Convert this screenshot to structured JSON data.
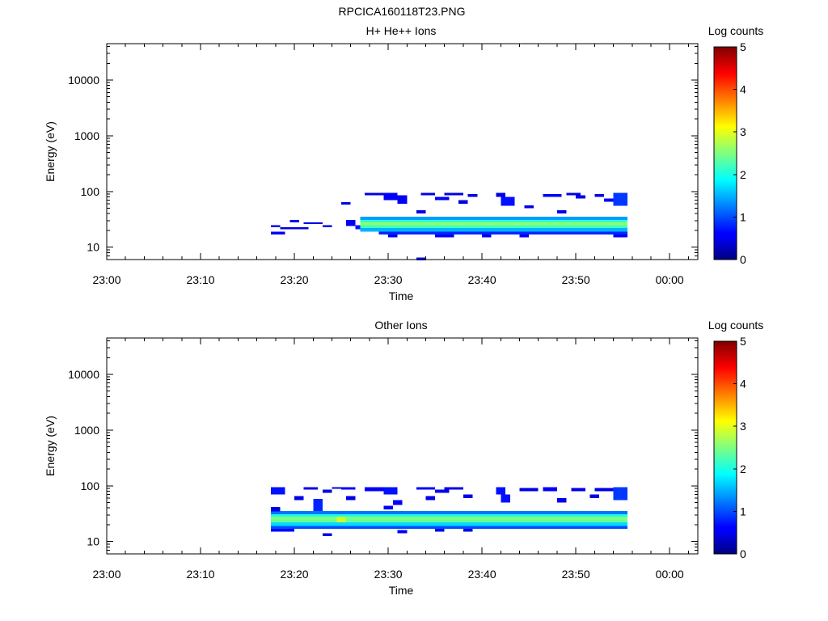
{
  "page_title": "RPCICA160118T23.PNG",
  "chart_data": [
    {
      "type": "heatmap",
      "title": "H+ He++ Ions",
      "xlabel": "Time",
      "ylabel": "Energy (eV)",
      "x_scale": "time",
      "y_scale": "log",
      "xlim": [
        "23:00",
        "00:03"
      ],
      "ylim": [
        6,
        45000
      ],
      "x_ticks": [
        {
          "label": "23:00",
          "minutes": 0
        },
        {
          "label": "23:10",
          "minutes": 10
        },
        {
          "label": "23:20",
          "minutes": 20
        },
        {
          "label": "23:30",
          "minutes": 30
        },
        {
          "label": "23:40",
          "minutes": 40
        },
        {
          "label": "23:50",
          "minutes": 50
        },
        {
          "label": "00:00",
          "minutes": 60
        }
      ],
      "y_ticks": [
        {
          "label": "10",
          "value": 10
        },
        {
          "label": "100",
          "value": 100
        },
        {
          "label": "1000",
          "value": 1000
        },
        {
          "label": "10000",
          "value": 10000
        }
      ],
      "colorbar": {
        "label": "Log counts",
        "min": 0,
        "max": 5,
        "ticks": [
          "0",
          "1",
          "2",
          "3",
          "4",
          "5"
        ]
      },
      "cells": [
        {
          "t0": "23:17.5",
          "t1": "23:18.5",
          "e_lo": 23,
          "e_hi": 25,
          "z": 0.6
        },
        {
          "t0": "23:17.5",
          "t1": "23:19",
          "e_lo": 17,
          "e_hi": 19,
          "z": 0.6
        },
        {
          "t0": "23:18.5",
          "t1": "23:21.5",
          "e_lo": 21,
          "e_hi": 23,
          "z": 0.5
        },
        {
          "t0": "23:19.5",
          "t1": "23:20.5",
          "e_lo": 28,
          "e_hi": 31,
          "z": 0.5
        },
        {
          "t0": "23:21",
          "t1": "23:23",
          "e_lo": 26,
          "e_hi": 28,
          "z": 0.5
        },
        {
          "t0": "23:23",
          "t1": "23:24",
          "e_lo": 23,
          "e_hi": 25,
          "z": 0.5
        },
        {
          "t0": "23:25",
          "t1": "23:26",
          "e_lo": 58,
          "e_hi": 64,
          "z": 0.5
        },
        {
          "t0": "23:25.5",
          "t1": "23:26.5",
          "e_lo": 24,
          "e_hi": 31,
          "z": 0.6
        },
        {
          "t0": "23:26.5",
          "t1": "23:27.5",
          "e_lo": 21,
          "e_hi": 25,
          "z": 0.7
        },
        {
          "t0": "23:27",
          "t1": "23:55.5",
          "e_lo": 31,
          "e_hi": 35,
          "z": 1.4
        },
        {
          "t0": "23:27",
          "t1": "23:55.5",
          "e_lo": 28,
          "e_hi": 31,
          "z": 2.1
        },
        {
          "t0": "23:27",
          "t1": "23:55.5",
          "e_lo": 25,
          "e_hi": 28,
          "z": 2.6
        },
        {
          "t0": "23:27",
          "t1": "23:55.5",
          "e_lo": 22,
          "e_hi": 25,
          "z": 2.2
        },
        {
          "t0": "23:27",
          "t1": "23:55.5",
          "e_lo": 19,
          "e_hi": 22,
          "z": 1.5
        },
        {
          "t0": "23:29",
          "t1": "23:55.5",
          "e_lo": 17,
          "e_hi": 19,
          "z": 0.8
        },
        {
          "t0": "23:30",
          "t1": "23:31",
          "e_lo": 15,
          "e_hi": 17,
          "z": 0.6
        },
        {
          "t0": "23:33",
          "t1": "23:34",
          "e_lo": 5.8,
          "e_hi": 6.5,
          "z": 0.5
        },
        {
          "t0": "23:35",
          "t1": "23:37",
          "e_lo": 15,
          "e_hi": 17,
          "z": 0.6
        },
        {
          "t0": "23:40",
          "t1": "23:41",
          "e_lo": 15,
          "e_hi": 17,
          "z": 0.6
        },
        {
          "t0": "23:44",
          "t1": "23:45",
          "e_lo": 15,
          "e_hi": 17,
          "z": 0.6
        },
        {
          "t0": "23:54",
          "t1": "23:55.5",
          "e_lo": 15,
          "e_hi": 17,
          "z": 0.6
        },
        {
          "t0": "23:27.5",
          "t1": "23:29.5",
          "e_lo": 85,
          "e_hi": 95,
          "z": 0.5
        },
        {
          "t0": "23:29.5",
          "t1": "23:31",
          "e_lo": 70,
          "e_hi": 95,
          "z": 0.6
        },
        {
          "t0": "23:31",
          "t1": "23:32",
          "e_lo": 60,
          "e_hi": 85,
          "z": 0.6
        },
        {
          "t0": "23:33",
          "t1": "23:34",
          "e_lo": 40,
          "e_hi": 46,
          "z": 0.5
        },
        {
          "t0": "23:33.5",
          "t1": "23:35",
          "e_lo": 85,
          "e_hi": 95,
          "z": 0.5
        },
        {
          "t0": "23:35",
          "t1": "23:36.5",
          "e_lo": 70,
          "e_hi": 80,
          "z": 0.6
        },
        {
          "t0": "23:36",
          "t1": "23:38",
          "e_lo": 85,
          "e_hi": 95,
          "z": 0.5
        },
        {
          "t0": "23:37.5",
          "t1": "23:38.5",
          "e_lo": 60,
          "e_hi": 70,
          "z": 0.5
        },
        {
          "t0": "23:38.5",
          "t1": "23:39.5",
          "e_lo": 80,
          "e_hi": 90,
          "z": 0.5
        },
        {
          "t0": "23:41.5",
          "t1": "23:42.5",
          "e_lo": 80,
          "e_hi": 95,
          "z": 0.5
        },
        {
          "t0": "23:42",
          "t1": "23:43.5",
          "e_lo": 55,
          "e_hi": 80,
          "z": 0.7
        },
        {
          "t0": "23:44.5",
          "t1": "23:45.5",
          "e_lo": 50,
          "e_hi": 56,
          "z": 0.5
        },
        {
          "t0": "23:46.5",
          "t1": "23:48.5",
          "e_lo": 80,
          "e_hi": 90,
          "z": 0.6
        },
        {
          "t0": "23:48",
          "t1": "23:49",
          "e_lo": 40,
          "e_hi": 46,
          "z": 0.5
        },
        {
          "t0": "23:49",
          "t1": "23:50.5",
          "e_lo": 85,
          "e_hi": 95,
          "z": 0.5
        },
        {
          "t0": "23:50",
          "t1": "23:51",
          "e_lo": 75,
          "e_hi": 85,
          "z": 0.5
        },
        {
          "t0": "23:52",
          "t1": "23:53",
          "e_lo": 80,
          "e_hi": 90,
          "z": 0.5
        },
        {
          "t0": "23:53",
          "t1": "23:54",
          "e_lo": 65,
          "e_hi": 75,
          "z": 0.6
        },
        {
          "t0": "23:54",
          "t1": "23:55.5",
          "e_lo": 55,
          "e_hi": 95,
          "z": 0.9
        }
      ]
    },
    {
      "type": "heatmap",
      "title": "Other Ions",
      "xlabel": "Time",
      "ylabel": "Energy (eV)",
      "x_scale": "time",
      "y_scale": "log",
      "xlim": [
        "23:00",
        "00:03"
      ],
      "ylim": [
        6,
        45000
      ],
      "x_ticks": [
        {
          "label": "23:00",
          "minutes": 0
        },
        {
          "label": "23:10",
          "minutes": 10
        },
        {
          "label": "23:20",
          "minutes": 20
        },
        {
          "label": "23:30",
          "minutes": 30
        },
        {
          "label": "23:40",
          "minutes": 40
        },
        {
          "label": "23:50",
          "minutes": 50
        },
        {
          "label": "00:00",
          "minutes": 60
        }
      ],
      "y_ticks": [
        {
          "label": "10",
          "value": 10
        },
        {
          "label": "100",
          "value": 100
        },
        {
          "label": "1000",
          "value": 1000
        },
        {
          "label": "10000",
          "value": 10000
        }
      ],
      "colorbar": {
        "label": "Log counts",
        "min": 0,
        "max": 5,
        "ticks": [
          "0",
          "1",
          "2",
          "3",
          "4",
          "5"
        ]
      },
      "cells": [
        {
          "t0": "23:17.5",
          "t1": "23:55.5",
          "e_lo": 31,
          "e_hi": 35,
          "z": 1.2
        },
        {
          "t0": "23:17.5",
          "t1": "23:55.5",
          "e_lo": 28,
          "e_hi": 31,
          "z": 2.0
        },
        {
          "t0": "23:17.5",
          "t1": "23:55.5",
          "e_lo": 25,
          "e_hi": 28,
          "z": 2.5
        },
        {
          "t0": "23:17.5",
          "t1": "23:55.5",
          "e_lo": 22,
          "e_hi": 25,
          "z": 2.4
        },
        {
          "t0": "23:17.5",
          "t1": "23:55.5",
          "e_lo": 19,
          "e_hi": 22,
          "z": 1.7
        },
        {
          "t0": "23:17.5",
          "t1": "23:55.5",
          "e_lo": 17,
          "e_hi": 19,
          "z": 1.0
        },
        {
          "t0": "23:24.5",
          "t1": "23:25.5",
          "e_lo": 22,
          "e_hi": 28,
          "z": 2.9
        },
        {
          "t0": "23:17.5",
          "t1": "23:20",
          "e_lo": 15,
          "e_hi": 17,
          "z": 0.6
        },
        {
          "t0": "23:23",
          "t1": "23:24",
          "e_lo": 12.5,
          "e_hi": 14,
          "z": 0.5
        },
        {
          "t0": "23:31",
          "t1": "23:32",
          "e_lo": 14,
          "e_hi": 16,
          "z": 0.6
        },
        {
          "t0": "23:35",
          "t1": "23:36",
          "e_lo": 15,
          "e_hi": 17,
          "z": 0.5
        },
        {
          "t0": "23:38",
          "t1": "23:39",
          "e_lo": 15,
          "e_hi": 17,
          "z": 0.5
        },
        {
          "t0": "23:17.5",
          "t1": "23:19",
          "e_lo": 70,
          "e_hi": 95,
          "z": 0.7
        },
        {
          "t0": "23:17.5",
          "t1": "23:18.5",
          "e_lo": 35,
          "e_hi": 42,
          "z": 0.5
        },
        {
          "t0": "23:20",
          "t1": "23:21",
          "e_lo": 55,
          "e_hi": 65,
          "z": 0.5
        },
        {
          "t0": "23:21",
          "t1": "23:22.5",
          "e_lo": 85,
          "e_hi": 95,
          "z": 0.5
        },
        {
          "t0": "23:22",
          "t1": "23:23",
          "e_lo": 35,
          "e_hi": 58,
          "z": 0.8
        },
        {
          "t0": "23:23",
          "t1": "23:24",
          "e_lo": 75,
          "e_hi": 85,
          "z": 0.5
        },
        {
          "t0": "23:24",
          "t1": "23:25",
          "e_lo": 88,
          "e_hi": 95,
          "z": 0.5
        },
        {
          "t0": "23:25",
          "t1": "23:26.5",
          "e_lo": 85,
          "e_hi": 95,
          "z": 0.6
        },
        {
          "t0": "23:25.5",
          "t1": "23:26.5",
          "e_lo": 55,
          "e_hi": 65,
          "z": 0.5
        },
        {
          "t0": "23:27.5",
          "t1": "23:29.5",
          "e_lo": 80,
          "e_hi": 95,
          "z": 0.6
        },
        {
          "t0": "23:29.5",
          "t1": "23:31",
          "e_lo": 70,
          "e_hi": 95,
          "z": 0.7
        },
        {
          "t0": "23:29.5",
          "t1": "23:30.5",
          "e_lo": 38,
          "e_hi": 44,
          "z": 0.6
        },
        {
          "t0": "23:30.5",
          "t1": "23:31.5",
          "e_lo": 45,
          "e_hi": 55,
          "z": 0.6
        },
        {
          "t0": "23:33",
          "t1": "23:35",
          "e_lo": 85,
          "e_hi": 95,
          "z": 0.6
        },
        {
          "t0": "23:34",
          "t1": "23:35",
          "e_lo": 55,
          "e_hi": 65,
          "z": 0.5
        },
        {
          "t0": "23:35",
          "t1": "23:36.5",
          "e_lo": 75,
          "e_hi": 85,
          "z": 0.5
        },
        {
          "t0": "23:36",
          "t1": "23:38",
          "e_lo": 85,
          "e_hi": 95,
          "z": 0.5
        },
        {
          "t0": "23:38",
          "t1": "23:39",
          "e_lo": 60,
          "e_hi": 70,
          "z": 0.5
        },
        {
          "t0": "23:41.5",
          "t1": "23:42.5",
          "e_lo": 70,
          "e_hi": 95,
          "z": 0.7
        },
        {
          "t0": "23:42",
          "t1": "23:43",
          "e_lo": 50,
          "e_hi": 70,
          "z": 0.7
        },
        {
          "t0": "23:44",
          "t1": "23:46",
          "e_lo": 80,
          "e_hi": 92,
          "z": 0.5
        },
        {
          "t0": "23:46.5",
          "t1": "23:48",
          "e_lo": 80,
          "e_hi": 95,
          "z": 0.6
        },
        {
          "t0": "23:48",
          "t1": "23:49",
          "e_lo": 50,
          "e_hi": 60,
          "z": 0.5
        },
        {
          "t0": "23:49.5",
          "t1": "23:51",
          "e_lo": 80,
          "e_hi": 92,
          "z": 0.5
        },
        {
          "t0": "23:51.5",
          "t1": "23:52.5",
          "e_lo": 60,
          "e_hi": 70,
          "z": 0.5
        },
        {
          "t0": "23:52",
          "t1": "23:54",
          "e_lo": 80,
          "e_hi": 92,
          "z": 0.5
        },
        {
          "t0": "23:54",
          "t1": "23:55.5",
          "e_lo": 55,
          "e_hi": 95,
          "z": 0.9
        }
      ]
    }
  ]
}
